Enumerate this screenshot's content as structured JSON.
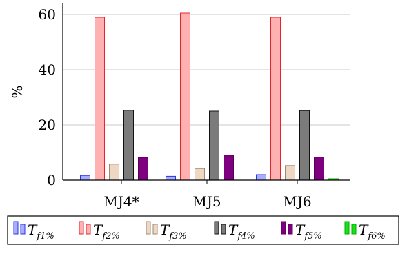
{
  "chart_data": {
    "type": "bar",
    "title": "",
    "xlabel": "",
    "ylabel": "%",
    "ylim": [
      0,
      64
    ],
    "yticks": [
      0,
      20,
      40,
      60
    ],
    "grid": true,
    "legend_position": "bottom",
    "categories": [
      "MJ4*",
      "MJ5",
      "MJ6"
    ],
    "series": [
      {
        "name_main": "T",
        "name_sub": "f1%",
        "fill": "#a9aefc",
        "stroke": "#2a34e8",
        "values": [
          1.7,
          1.4,
          2.0
        ]
      },
      {
        "name_main": "T",
        "name_sub": "f2%",
        "fill": "#ffb1b1",
        "stroke": "#e8242a",
        "values": [
          59.0,
          60.5,
          59.0
        ]
      },
      {
        "name_main": "T",
        "name_sub": "f3%",
        "fill": "#eed8c4",
        "stroke": "#9d8a76",
        "values": [
          5.8,
          4.2,
          5.3
        ]
      },
      {
        "name_main": "T",
        "name_sub": "f4%",
        "fill": "#7b7b7b",
        "stroke": "#111111",
        "values": [
          25.3,
          25.0,
          25.2
        ]
      },
      {
        "name_main": "T",
        "name_sub": "f5%",
        "fill": "#7f007f",
        "stroke": "#5a005a",
        "values": [
          8.2,
          9.0,
          8.3
        ]
      },
      {
        "name_main": "T",
        "name_sub": "f6%",
        "fill": "#13e413",
        "stroke": "#0aa80a",
        "values": [
          0.0,
          0.0,
          0.5
        ]
      }
    ]
  }
}
